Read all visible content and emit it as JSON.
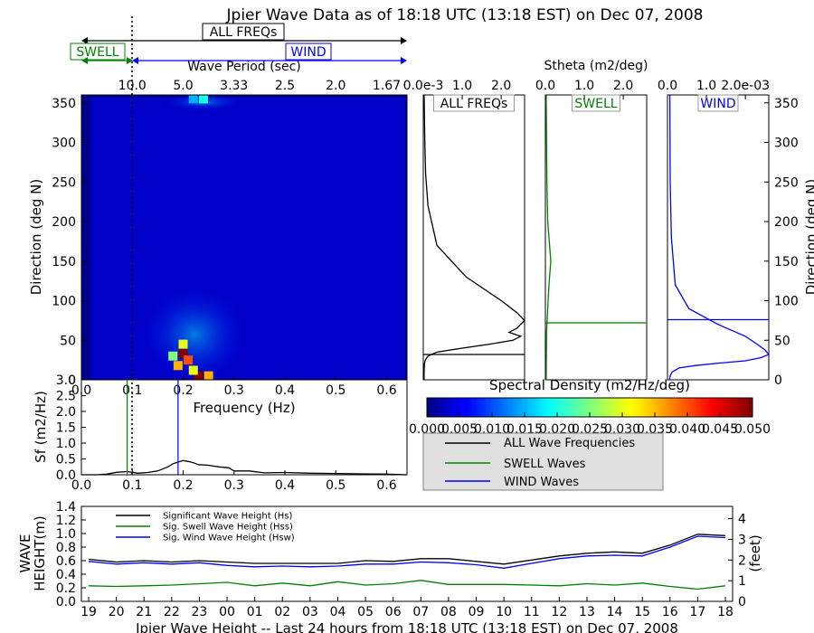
{
  "title": "Jpier Wave Data as of 18:18 UTC (13:18 EST) on Dec 07, 2008",
  "bands": {
    "all_label": "ALL FREQs",
    "swell_label": "SWELL",
    "wind_label": "WIND",
    "all_color": "#000000",
    "swell_color": "#008000",
    "wind_color": "#0000ff"
  },
  "chart_data": [
    {
      "id": "direction_spectrum",
      "type": "heatmap",
      "xlabel": "Frequency (Hz)",
      "ylabel": "Direction (deg N)",
      "top_axis_label": "Wave Period (sec)",
      "xlim": [
        0.0,
        0.64
      ],
      "ylim": [
        0,
        360
      ],
      "xticks": [
        "0.0",
        "0.1",
        "0.2",
        "0.3",
        "0.4",
        "0.5",
        "0.6"
      ],
      "yticks": [
        "0",
        "50",
        "100",
        "150",
        "200",
        "250",
        "300",
        "350"
      ],
      "period_ticks": [
        "10.0",
        "5.0",
        "3.33",
        "2.5",
        "2.0",
        "1.67"
      ],
      "period_tick_freqs": [
        0.1,
        0.2,
        0.3,
        0.4,
        0.5,
        0.6
      ],
      "swell_wind_separation_hz": 0.1,
      "colorbar": {
        "label": "Spectral Density (m2/Hz/deg)",
        "min": 0.0,
        "max": 0.05,
        "ticks": [
          "0.000",
          "0.005",
          "0.010",
          "0.015",
          "0.020",
          "0.025",
          "0.030",
          "0.035",
          "0.040",
          "0.045",
          "0.050"
        ]
      },
      "hotspots": [
        {
          "freq": 0.19,
          "dir": 18,
          "density": 0.035
        },
        {
          "freq": 0.2,
          "dir": 33,
          "density": 0.05
        },
        {
          "freq": 0.21,
          "dir": 25,
          "density": 0.04
        },
        {
          "freq": 0.2,
          "dir": 45,
          "density": 0.03
        },
        {
          "freq": 0.23,
          "dir": 5,
          "density": 0.05
        },
        {
          "freq": 0.22,
          "dir": 12,
          "density": 0.03
        },
        {
          "freq": 0.18,
          "dir": 30,
          "density": 0.025
        },
        {
          "freq": 0.25,
          "dir": 5,
          "density": 0.035
        },
        {
          "freq": 0.24,
          "dir": 355,
          "density": 0.02
        },
        {
          "freq": 0.22,
          "dir": 355,
          "density": 0.015
        }
      ]
    },
    {
      "id": "stheta_all",
      "type": "line",
      "panel_label": "ALL FREQs",
      "top_axis_label": "Stheta (m2/deg)",
      "xticks": [
        "0.0e-3",
        "1.0",
        "2.0"
      ],
      "xlim": [
        0,
        2.6
      ],
      "ylim": [
        0,
        360
      ],
      "x": [
        0.02,
        0.02,
        0.03,
        0.05,
        0.12,
        0.35,
        1.0,
        1.7,
        2.3,
        2.5,
        2.2,
        2.4,
        2.6,
        2.4,
        2.0,
        1.1,
        0.35,
        0.12,
        0.06,
        0.04,
        0.03,
        0.025,
        0.02
      ],
      "y": [
        0,
        10,
        20,
        25,
        30,
        35,
        40,
        45,
        50,
        55,
        60,
        65,
        75,
        85,
        100,
        130,
        170,
        220,
        260,
        300,
        330,
        350,
        360
      ],
      "marker_dir": 32
    },
    {
      "id": "stheta_swell",
      "type": "line",
      "panel_label": "SWELL",
      "xticks": [
        "0.0",
        "1.0",
        "2.0"
      ],
      "xlim": [
        0,
        2.6
      ],
      "ylim": [
        0,
        360
      ],
      "x": [
        0.02,
        0.03,
        0.04,
        0.05,
        0.07,
        0.1,
        0.14,
        0.1,
        0.06,
        0.04,
        0.03,
        0.02
      ],
      "y": [
        0,
        60,
        70,
        80,
        100,
        125,
        150,
        175,
        200,
        250,
        300,
        360
      ],
      "marker_dir": 72
    },
    {
      "id": "stheta_wind",
      "type": "line",
      "panel_label": "WIND",
      "xticks": [
        "0.0",
        "1.0",
        "2.0e-03"
      ],
      "xlim": [
        0,
        2.6
      ],
      "ylim": [
        0,
        360
      ],
      "x": [
        0.05,
        0.07,
        0.12,
        0.3,
        0.7,
        1.3,
        2.0,
        2.4,
        2.6,
        2.5,
        2.3,
        2.0,
        1.3,
        0.55,
        0.2,
        0.1,
        0.07,
        0.06
      ],
      "y": [
        0,
        5,
        10,
        15,
        18,
        21,
        24,
        28,
        32,
        38,
        45,
        55,
        70,
        90,
        120,
        180,
        250,
        360
      ],
      "marker_dir": 76,
      "yticks_right": [
        "0",
        "50",
        "100",
        "150",
        "200",
        "250",
        "300",
        "350"
      ],
      "ylabel_right": "Direction (deg N)"
    },
    {
      "id": "freq_spectrum",
      "type": "line",
      "xlabel": "",
      "ylabel": "Sf (m2/Hz)",
      "xlim": [
        0.0,
        0.64
      ],
      "ylim": [
        0.0,
        3.0
      ],
      "xticks": [
        "0.0",
        "0.1",
        "0.2",
        "0.3",
        "0.4",
        "0.5",
        "0.6"
      ],
      "yticks": [
        "0.0",
        "0.5",
        "1.0",
        "1.5",
        "2.0",
        "2.5",
        "3.0"
      ],
      "x": [
        0.0,
        0.03,
        0.05,
        0.07,
        0.09,
        0.1,
        0.11,
        0.13,
        0.15,
        0.17,
        0.18,
        0.19,
        0.2,
        0.21,
        0.22,
        0.23,
        0.25,
        0.27,
        0.29,
        0.3,
        0.33,
        0.36,
        0.4,
        0.45,
        0.5,
        0.55,
        0.6,
        0.64
      ],
      "y": [
        0.0,
        0.0,
        0.02,
        0.08,
        0.1,
        0.08,
        0.05,
        0.07,
        0.12,
        0.25,
        0.35,
        0.4,
        0.45,
        0.42,
        0.38,
        0.32,
        0.3,
        0.25,
        0.22,
        0.12,
        0.12,
        0.06,
        0.07,
        0.05,
        0.04,
        0.03,
        0.02,
        0.0
      ],
      "swell_marker_hz": 0.09,
      "wind_marker_hz": 0.19,
      "separation_hz": 0.1
    },
    {
      "id": "wave_height_history",
      "type": "line",
      "xlabel": "Jpier Wave Height -- Last 24 hours from 18:18 UTC (13:18 EST) on Dec 07, 2008",
      "ylabel": "WAVE HEIGHT(m)",
      "ylabel_right": "(feet)",
      "ylim": [
        0.0,
        1.4
      ],
      "yticks": [
        "0.0",
        "0.2",
        "0.4",
        "0.6",
        "0.8",
        "1.0",
        "1.2",
        "1.4"
      ],
      "yticks_right": [
        "0",
        "1",
        "2",
        "3",
        "4"
      ],
      "xticks": [
        "19",
        "20",
        "21",
        "22",
        "23",
        "00",
        "01",
        "02",
        "03",
        "04",
        "05",
        "06",
        "07",
        "08",
        "09",
        "10",
        "11",
        "12",
        "13",
        "14",
        "15",
        "16",
        "17",
        "18"
      ],
      "x": [
        0.0,
        1.0,
        2.0,
        3.0,
        4.0,
        5.0,
        6.0,
        7.0,
        8.0,
        9.0,
        10.0,
        11.0,
        12.0,
        13.0,
        14.0,
        15.0,
        16.0,
        17.0,
        18.0,
        19.0,
        20.0,
        21.0,
        22.0,
        23.0
      ],
      "series": [
        {
          "name": "Significant Wave Height (Hs)",
          "color": "#000000",
          "values": [
            0.62,
            0.58,
            0.6,
            0.58,
            0.6,
            0.58,
            0.56,
            0.56,
            0.56,
            0.56,
            0.6,
            0.59,
            0.63,
            0.63,
            0.59,
            0.55,
            0.61,
            0.67,
            0.71,
            0.73,
            0.71,
            0.83,
            0.99,
            0.97
          ]
        },
        {
          "name": "Sig. Swell Wave Height (Hss)",
          "color": "#008000",
          "values": [
            0.23,
            0.22,
            0.23,
            0.24,
            0.26,
            0.28,
            0.23,
            0.27,
            0.23,
            0.29,
            0.24,
            0.26,
            0.31,
            0.25,
            0.25,
            0.25,
            0.24,
            0.23,
            0.26,
            0.24,
            0.27,
            0.22,
            0.18,
            0.23
          ]
        },
        {
          "name": "Sig. Wind Wave Height (Hsw)",
          "color": "#0000ff",
          "values": [
            0.59,
            0.55,
            0.57,
            0.55,
            0.57,
            0.53,
            0.51,
            0.52,
            0.51,
            0.52,
            0.55,
            0.55,
            0.58,
            0.57,
            0.54,
            0.49,
            0.56,
            0.63,
            0.67,
            0.68,
            0.67,
            0.8,
            0.96,
            0.94
          ]
        }
      ]
    }
  ],
  "legend_freq": {
    "all": "ALL Wave Frequencies",
    "swell": "SWELL Waves",
    "wind": "WIND Waves"
  }
}
